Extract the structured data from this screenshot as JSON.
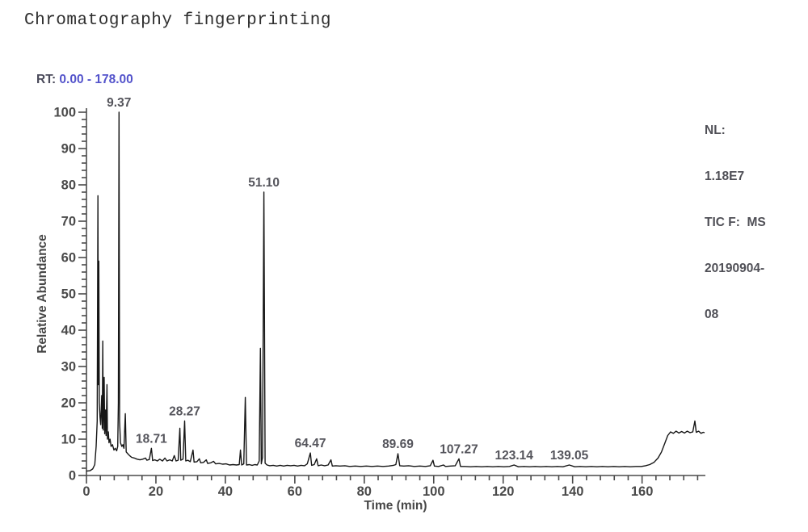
{
  "page": {
    "title": "Chromatography fingerprinting"
  },
  "header": {
    "rt_prefix": "RT: ",
    "rt_range": "0.00 - 178.00"
  },
  "legend": {
    "lines": [
      "NL:",
      "1.18E7",
      "TIC F:  MS",
      "20190904-",
      "08"
    ]
  },
  "colors": {
    "accent_blue": "#5353cb",
    "axis_gray": "#4a4a4a",
    "trace_black": "#161616"
  },
  "chart_data": {
    "type": "line",
    "title": "Chromatography fingerprinting",
    "xlabel": "Time (min)",
    "ylabel": "Relative Abundance",
    "xlim": [
      0,
      178
    ],
    "ylim": [
      0,
      100
    ],
    "x_major_ticks": [
      0,
      20,
      40,
      60,
      80,
      100,
      120,
      140,
      160
    ],
    "x_minor_step": 4,
    "x_minor_end": 176,
    "y_major_ticks": [
      0,
      10,
      20,
      30,
      40,
      50,
      60,
      70,
      80,
      90,
      100
    ],
    "y_minor_step": 2,
    "grid": false,
    "legend_position": "top-right",
    "rt_annotation": "RT: 0.00 - 178.00",
    "normalization": "NL: 1.18E7 TIC F: MS 20190904-08",
    "peak_labels": [
      {
        "label": "9.37",
        "time": 9.37,
        "abundance": 100
      },
      {
        "label": "18.71",
        "time": 18.71,
        "abundance": 7.5
      },
      {
        "label": "28.27",
        "time": 28.27,
        "abundance": 15
      },
      {
        "label": "51.10",
        "time": 51.1,
        "abundance": 78
      },
      {
        "label": "64.47",
        "time": 64.47,
        "abundance": 6.2
      },
      {
        "label": "89.69",
        "time": 89.69,
        "abundance": 6.0
      },
      {
        "label": "107.27",
        "time": 107.27,
        "abundance": 4.6
      },
      {
        "label": "123.14",
        "time": 123.14,
        "abundance": 2.9
      },
      {
        "label": "139.05",
        "time": 139.05,
        "abundance": 2.9
      }
    ],
    "series": [
      {
        "name": "TIC",
        "points": [
          [
            0,
            1.2
          ],
          [
            1.0,
            1.3
          ],
          [
            1.8,
            1.8
          ],
          [
            2.4,
            3
          ],
          [
            2.8,
            8
          ],
          [
            3.1,
            15
          ],
          [
            3.3,
            77
          ],
          [
            3.42,
            25
          ],
          [
            3.55,
            59
          ],
          [
            3.7,
            20
          ],
          [
            3.9,
            16
          ],
          [
            4.1,
            14
          ],
          [
            4.4,
            22
          ],
          [
            4.55,
            13
          ],
          [
            4.7,
            37
          ],
          [
            4.85,
            12.5
          ],
          [
            5.1,
            27
          ],
          [
            5.25,
            11.5
          ],
          [
            5.5,
            18
          ],
          [
            5.65,
            11
          ],
          [
            5.9,
            25
          ],
          [
            6.05,
            10
          ],
          [
            6.3,
            12
          ],
          [
            6.5,
            9
          ],
          [
            6.8,
            10
          ],
          [
            7.1,
            8
          ],
          [
            7.5,
            8.5
          ],
          [
            7.9,
            7
          ],
          [
            8.3,
            7.5
          ],
          [
            8.7,
            6.8
          ],
          [
            9.0,
            8
          ],
          [
            9.2,
            20
          ],
          [
            9.37,
            100
          ],
          [
            9.55,
            15
          ],
          [
            9.8,
            9
          ],
          [
            10.2,
            8
          ],
          [
            10.5,
            8.5
          ],
          [
            10.8,
            7.5
          ],
          [
            11.2,
            17
          ],
          [
            11.45,
            6.5
          ],
          [
            11.9,
            6
          ],
          [
            12.4,
            5.5
          ],
          [
            13.0,
            5
          ],
          [
            13.8,
            4.8
          ],
          [
            14.6,
            4.5
          ],
          [
            15.4,
            4.3
          ],
          [
            16.2,
            4.5
          ],
          [
            17.0,
            4.8
          ],
          [
            17.4,
            4.2
          ],
          [
            18.1,
            4.4
          ],
          [
            18.71,
            7.5
          ],
          [
            19.05,
            4.1
          ],
          [
            19.7,
            4.3
          ],
          [
            20.4,
            4.0
          ],
          [
            21.1,
            4.5
          ],
          [
            21.9,
            4.0
          ],
          [
            22.6,
            4.8
          ],
          [
            23.2,
            4.0
          ],
          [
            24.0,
            4.3
          ],
          [
            24.7,
            4.0
          ],
          [
            25.3,
            5.5
          ],
          [
            25.8,
            4.0
          ],
          [
            26.4,
            4.2
          ],
          [
            26.9,
            13
          ],
          [
            27.15,
            4.2
          ],
          [
            27.8,
            4.5
          ],
          [
            28.27,
            15
          ],
          [
            28.6,
            4.0
          ],
          [
            29.2,
            4.2
          ],
          [
            29.9,
            3.8
          ],
          [
            30.7,
            7
          ],
          [
            31.0,
            3.7
          ],
          [
            31.8,
            3.8
          ],
          [
            32.5,
            4.6
          ],
          [
            32.9,
            3.5
          ],
          [
            33.7,
            3.6
          ],
          [
            34.5,
            4.3
          ],
          [
            34.9,
            3.3
          ],
          [
            35.8,
            3.5
          ],
          [
            36.6,
            3.9
          ],
          [
            37.2,
            3.2
          ],
          [
            38.2,
            3.3
          ],
          [
            39.2,
            3.1
          ],
          [
            40.2,
            3.2
          ],
          [
            41.2,
            2.9
          ],
          [
            42.2,
            3.0
          ],
          [
            43.2,
            2.9
          ],
          [
            44.0,
            3.0
          ],
          [
            44.35,
            7
          ],
          [
            44.7,
            2.9
          ],
          [
            45.3,
            3.2
          ],
          [
            45.75,
            21.5
          ],
          [
            46.1,
            2.9
          ],
          [
            46.9,
            3.0
          ],
          [
            47.7,
            2.8
          ],
          [
            48.5,
            3.0
          ],
          [
            49.2,
            2.9
          ],
          [
            49.75,
            4
          ],
          [
            50.1,
            35
          ],
          [
            50.35,
            3.2
          ],
          [
            50.7,
            5
          ],
          [
            51.1,
            78
          ],
          [
            51.45,
            3.4
          ],
          [
            52.0,
            2.9
          ],
          [
            52.8,
            2.7
          ],
          [
            53.8,
            2.8
          ],
          [
            54.8,
            2.6
          ],
          [
            55.8,
            2.8
          ],
          [
            56.8,
            2.6
          ],
          [
            57.8,
            2.8
          ],
          [
            58.8,
            2.7
          ],
          [
            59.8,
            2.8
          ],
          [
            60.8,
            2.6
          ],
          [
            61.8,
            2.8
          ],
          [
            62.8,
            2.7
          ],
          [
            63.6,
            3.2
          ],
          [
            64.47,
            6.2
          ],
          [
            64.85,
            2.8
          ],
          [
            65.6,
            3.0
          ],
          [
            66.3,
            4.6
          ],
          [
            66.7,
            2.7
          ],
          [
            67.6,
            2.9
          ],
          [
            68.6,
            2.7
          ],
          [
            69.6,
            2.9
          ],
          [
            70.4,
            4.3
          ],
          [
            70.8,
            2.6
          ],
          [
            71.8,
            2.7
          ],
          [
            73.0,
            2.6
          ],
          [
            74.4,
            2.7
          ],
          [
            75.8,
            2.5
          ],
          [
            77.4,
            2.6
          ],
          [
            79.0,
            2.5
          ],
          [
            80.6,
            2.6
          ],
          [
            82.2,
            2.5
          ],
          [
            83.8,
            2.6
          ],
          [
            85.4,
            2.5
          ],
          [
            87.0,
            2.6
          ],
          [
            88.4,
            2.8
          ],
          [
            89.1,
            3.0
          ],
          [
            89.69,
            6.0
          ],
          [
            90.2,
            2.7
          ],
          [
            91.4,
            2.6
          ],
          [
            92.8,
            2.7
          ],
          [
            94.4,
            2.5
          ],
          [
            96.0,
            2.6
          ],
          [
            97.6,
            2.5
          ],
          [
            99.0,
            2.7
          ],
          [
            99.8,
            4.2
          ],
          [
            100.2,
            2.6
          ],
          [
            101.4,
            2.5
          ],
          [
            102.8,
            2.9
          ],
          [
            103.4,
            2.5
          ],
          [
            104.8,
            2.6
          ],
          [
            106.2,
            2.7
          ],
          [
            107.27,
            4.6
          ],
          [
            107.7,
            2.5
          ],
          [
            109.0,
            2.5
          ],
          [
            110.6,
            2.4
          ],
          [
            112.2,
            2.5
          ],
          [
            113.8,
            2.4
          ],
          [
            115.4,
            2.5
          ],
          [
            117.0,
            2.4
          ],
          [
            118.6,
            2.5
          ],
          [
            120.2,
            2.4
          ],
          [
            121.8,
            2.5
          ],
          [
            123.14,
            2.9
          ],
          [
            124.4,
            2.4
          ],
          [
            126.0,
            2.5
          ],
          [
            127.6,
            2.4
          ],
          [
            129.2,
            2.5
          ],
          [
            130.8,
            2.4
          ],
          [
            132.4,
            2.5
          ],
          [
            134.0,
            2.4
          ],
          [
            135.6,
            2.5
          ],
          [
            137.2,
            2.4
          ],
          [
            139.05,
            2.9
          ],
          [
            140.6,
            2.4
          ],
          [
            142.2,
            2.5
          ],
          [
            143.8,
            2.4
          ],
          [
            145.4,
            2.5
          ],
          [
            147.0,
            2.4
          ],
          [
            148.6,
            2.5
          ],
          [
            150.2,
            2.4
          ],
          [
            151.8,
            2.5
          ],
          [
            153.4,
            2.4
          ],
          [
            155.0,
            2.5
          ],
          [
            156.6,
            2.4
          ],
          [
            158.2,
            2.5
          ],
          [
            159.8,
            2.5
          ],
          [
            161.0,
            2.7
          ],
          [
            162.2,
            3.0
          ],
          [
            163.4,
            3.6
          ],
          [
            164.6,
            4.8
          ],
          [
            165.6,
            6.5
          ],
          [
            166.6,
            9.0
          ],
          [
            167.4,
            11.0
          ],
          [
            168.2,
            12.0
          ],
          [
            169.0,
            11.6
          ],
          [
            169.8,
            12.2
          ],
          [
            170.6,
            11.7
          ],
          [
            171.4,
            12.1
          ],
          [
            172.2,
            11.7
          ],
          [
            173.0,
            12.2
          ],
          [
            173.8,
            11.8
          ],
          [
            174.6,
            12.0
          ],
          [
            175.2,
            15.0
          ],
          [
            175.6,
            11.9
          ],
          [
            176.3,
            12.2
          ],
          [
            177.0,
            11.6
          ],
          [
            177.6,
            11.9
          ],
          [
            178,
            11.8
          ]
        ]
      }
    ]
  }
}
